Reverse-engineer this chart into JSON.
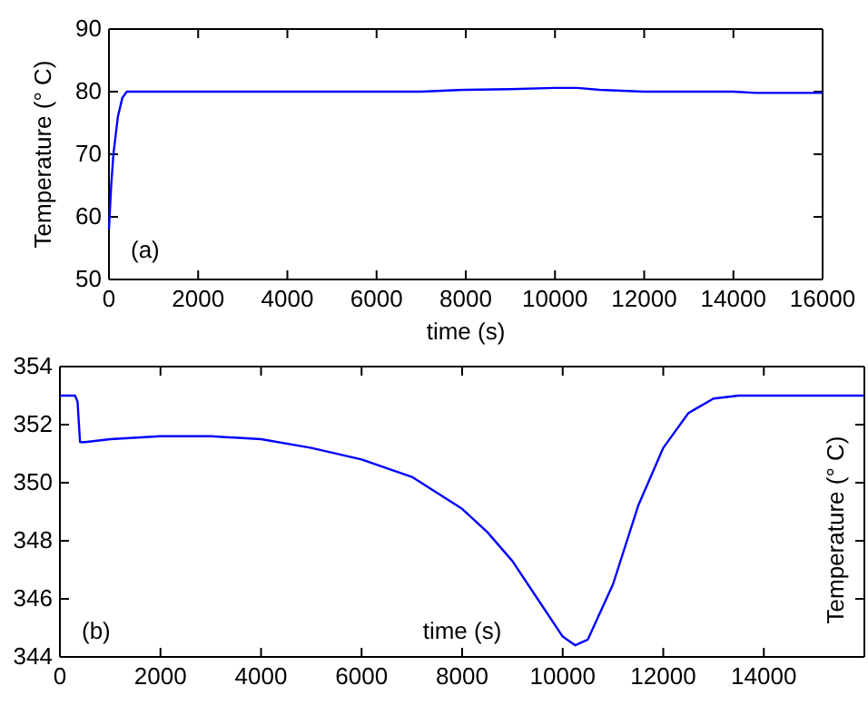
{
  "chart_data": [
    {
      "type": "line",
      "xlabel": "time (s)",
      "ylabel": "Temperature (° C)",
      "annotations": [
        "(a)"
      ],
      "xlim": [
        0,
        16000
      ],
      "ylim": [
        50,
        90
      ],
      "xticks": [
        0,
        2000,
        4000,
        6000,
        8000,
        10000,
        12000,
        14000,
        16000
      ],
      "yticks": [
        50,
        60,
        70,
        80,
        90
      ],
      "grid": false,
      "x": [
        0,
        50,
        100,
        200,
        300,
        400,
        2000,
        7000,
        8000,
        9000,
        10000,
        10500,
        11000,
        12000,
        14000,
        14500,
        16000
      ],
      "series": [
        {
          "color": "#0000ff",
          "values": [
            58,
            65,
            70,
            76,
            79,
            80,
            80,
            80,
            80.3,
            80.4,
            80.6,
            80.6,
            80.3,
            80,
            80,
            79.8,
            79.8
          ]
        }
      ]
    },
    {
      "type": "line",
      "xlabel": "time (s)",
      "ylabel": "Temperature (° C)",
      "annotations": [
        "(b)"
      ],
      "xlim": [
        0,
        16000
      ],
      "ylim": [
        344,
        354
      ],
      "xticks": [
        0,
        2000,
        4000,
        6000,
        8000,
        10000,
        12000,
        14000
      ],
      "yticks": [
        344,
        346,
        348,
        350,
        352,
        354
      ],
      "grid": false,
      "x": [
        0,
        300,
        350,
        400,
        500,
        1000,
        2000,
        3000,
        4000,
        5000,
        6000,
        7000,
        8000,
        8500,
        9000,
        9500,
        10000,
        10250,
        10500,
        11000,
        11500,
        12000,
        12500,
        13000,
        13500,
        16000
      ],
      "series": [
        {
          "color": "#0000ff",
          "values": [
            353,
            353,
            352.8,
            351.4,
            351.4,
            351.5,
            351.6,
            351.6,
            351.5,
            351.2,
            350.8,
            350.2,
            349.1,
            348.3,
            347.3,
            346,
            344.7,
            344.4,
            344.6,
            346.5,
            349.2,
            351.2,
            352.4,
            352.9,
            353,
            353
          ]
        }
      ]
    }
  ]
}
